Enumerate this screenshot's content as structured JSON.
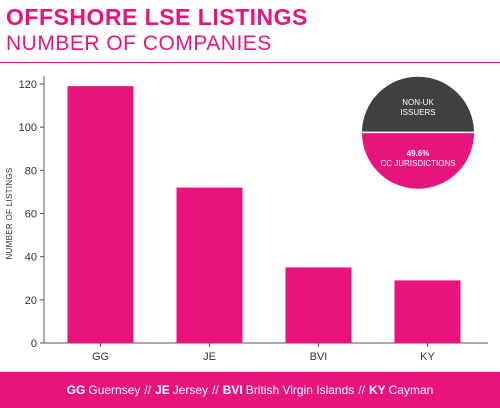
{
  "title": "OFFSHORE LSE LISTINGS",
  "subtitle": "NUMBER OF COMPANIES",
  "colors": {
    "accent": "#e8137d",
    "dark": "#404040",
    "white": "#ffffff"
  },
  "chart_data": [
    {
      "type": "bar",
      "categories": [
        "GG",
        "JE",
        "BVI",
        "KY"
      ],
      "values": [
        119,
        72,
        35,
        29
      ],
      "ylabel": "NUMBER OF LISTINGS",
      "xlabel": "",
      "ylim": [
        0,
        120
      ],
      "yticks": [
        0,
        20,
        40,
        60,
        80,
        100,
        120
      ],
      "grid": false
    },
    {
      "type": "pie",
      "slices": [
        {
          "label": "NON-UK ISSUERS",
          "value": 50.4,
          "value_label": ""
        },
        {
          "label": "CC JURISDICTIONS",
          "value": 49.6,
          "value_label": "49.6%"
        }
      ]
    }
  ],
  "footer": [
    {
      "code": "GG",
      "name": "Guernsey"
    },
    {
      "code": "JE",
      "name": "Jersey"
    },
    {
      "code": "BVI",
      "name": "British Virgin Islands"
    },
    {
      "code": "KY",
      "name": "Cayman"
    }
  ],
  "footer_separator": "//"
}
